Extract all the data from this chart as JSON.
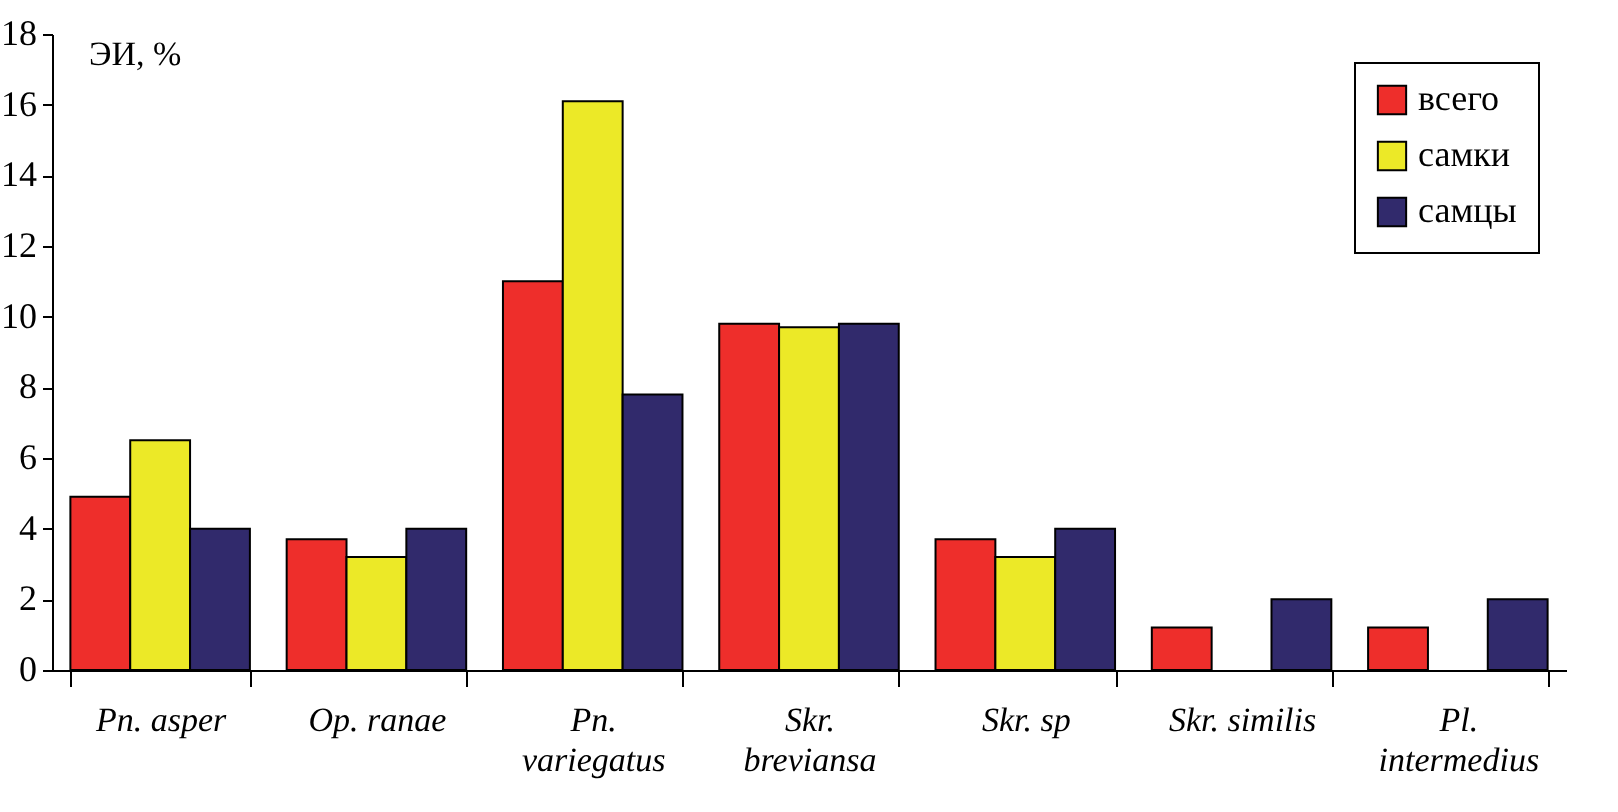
{
  "chart_data": {
    "type": "bar",
    "ylabel": "ЭИ, %",
    "categories": [
      "Pn. asper",
      "Op. ranae",
      "Pn. variegatus",
      "Skr. breviansa",
      "Skr. sp",
      "Skr. similis",
      "Pl. intermedius"
    ],
    "series": [
      {
        "name": "всего",
        "color": "#ee2e2b",
        "values": [
          4.9,
          3.7,
          11.0,
          9.8,
          3.7,
          1.2,
          1.2
        ]
      },
      {
        "name": "самки",
        "color": "#ece927",
        "values": [
          6.5,
          3.2,
          16.1,
          9.7,
          3.2,
          null,
          null
        ]
      },
      {
        "name": "самцы",
        "color": "#312a6c",
        "values": [
          4.0,
          4.0,
          7.8,
          9.8,
          4.0,
          2.0,
          2.0
        ]
      }
    ],
    "ylim": [
      0,
      18
    ],
    "yticks": [
      0,
      2,
      4,
      6,
      8,
      10,
      12,
      14,
      16,
      18
    ],
    "grid": false,
    "legend": "top right"
  }
}
